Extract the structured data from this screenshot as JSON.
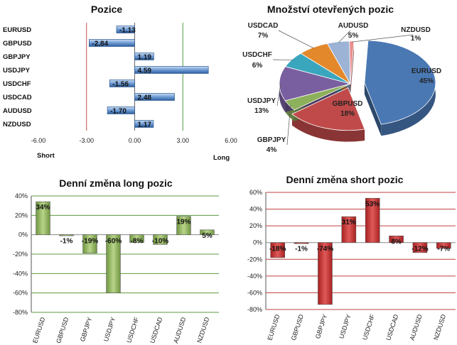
{
  "chart_data": [
    {
      "type": "bar",
      "orientation": "horizontal",
      "title": "Pozice",
      "categories": [
        "EURUSD",
        "GBPUSD",
        "GBPJPY",
        "USDJPY",
        "USDCHF",
        "USDCAD",
        "AUDUSD",
        "NZDUSD"
      ],
      "values": [
        -1.13,
        -2.84,
        1.19,
        4.59,
        -1.56,
        2.48,
        -1.7,
        1.17
      ],
      "value_labels": [
        "-1.13",
        "-2.84",
        "1.19",
        "4.59",
        "-1.56",
        "2.48",
        "-1.70",
        "1.17"
      ],
      "xlim": [
        -6,
        6
      ],
      "xticks": [
        "-6.00",
        "-3.00",
        "0.00",
        "3.00",
        "6.00"
      ],
      "short_label": "Short",
      "long_label": "Long",
      "colors": {
        "bar": "#4a7fc0",
        "short_line": "#c0504d",
        "long_line": "#4f9a3c"
      }
    },
    {
      "type": "pie",
      "title": "Množství otevřených pozic",
      "slices": [
        {
          "name": "EURUSD",
          "value": 45,
          "label": "45%",
          "color": "#4a78b3"
        },
        {
          "name": "GBPUSD",
          "value": 18,
          "label": "18%",
          "color": "#c04a4a"
        },
        {
          "name": "GBPJPY",
          "value": 4,
          "label": "4%",
          "color": "#8db05a"
        },
        {
          "name": "USDJPY",
          "value": 13,
          "label": "13%",
          "color": "#7a5fa0"
        },
        {
          "name": "USDCHF",
          "value": 6,
          "label": "6%",
          "color": "#3aa6bd"
        },
        {
          "name": "USDCAD",
          "value": 7,
          "label": "7%",
          "color": "#e3892c"
        },
        {
          "name": "AUDUSD",
          "value": 5,
          "label": "5%",
          "color": "#9cb3d6"
        },
        {
          "name": "NZDUSD",
          "value": 1,
          "label": "1%",
          "color": "#e88f8f"
        }
      ]
    },
    {
      "type": "bar",
      "title": "Denní změna long pozic",
      "categories": [
        "EURUSD",
        "GBPUSD",
        "GBPJPY",
        "USDJPY",
        "USDCHF",
        "USDCAD",
        "AUDUSD",
        "NZDUSD"
      ],
      "values": [
        34,
        -1,
        -19,
        -60,
        -8,
        -10,
        19,
        5
      ],
      "value_labels": [
        "34%",
        "-1%",
        "-19%",
        "-60%",
        "-8%",
        "-10%",
        "19%",
        "5%"
      ],
      "ylim": [
        -80,
        40
      ],
      "yticks": [
        "40%",
        "20%",
        "0%",
        "-20%",
        "-40%",
        "-60%",
        "-80%"
      ],
      "colors": {
        "bar": "#8fb25a",
        "grid": "#5f9a3c"
      }
    },
    {
      "type": "bar",
      "title": "Denní změna short pozic",
      "categories": [
        "EURUSD",
        "GBPUSD",
        "GBPJPY",
        "USDJPY",
        "USDCHF",
        "USDCAD",
        "AUDUSD",
        "NZDUSD"
      ],
      "values": [
        -18,
        -1,
        -74,
        31,
        53,
        8,
        -12,
        -7
      ],
      "value_labels": [
        "-18%",
        "-1%",
        "-74%",
        "31%",
        "53%",
        "8%",
        "-12%",
        "-7%"
      ],
      "ylim": [
        -80,
        60
      ],
      "yticks": [
        "60%",
        "40%",
        "20%",
        "0%",
        "-20%",
        "-40%",
        "-60%",
        "-80%"
      ],
      "colors": {
        "bar": "#d04040",
        "grid": "#c04040"
      }
    }
  ]
}
